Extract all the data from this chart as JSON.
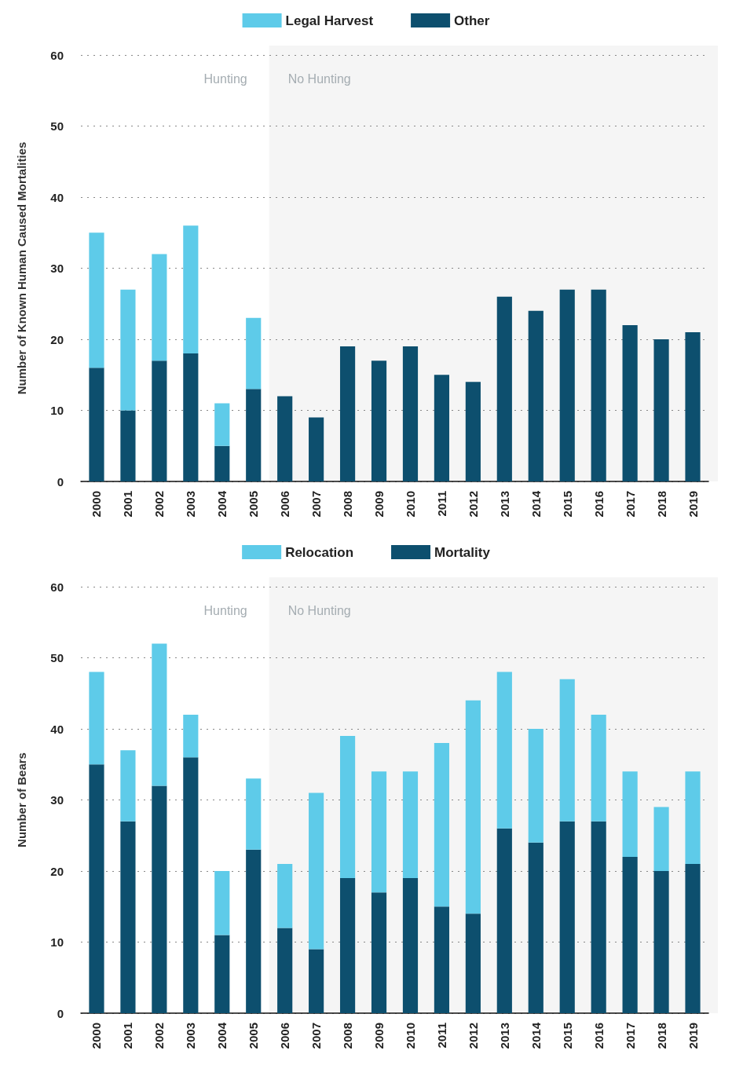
{
  "chart_data": [
    {
      "type": "bar",
      "stacked": true,
      "ylabel": "Number of Known Human Caused Mortalities",
      "categories": [
        "2000",
        "2001",
        "2002",
        "2003",
        "2004",
        "2005",
        "2006",
        "2007",
        "2008",
        "2009",
        "2010",
        "2011",
        "2012",
        "2013",
        "2014",
        "2015",
        "2016",
        "2017",
        "2018",
        "2019"
      ],
      "series": [
        {
          "name": "Other",
          "color": "#0d4f6e",
          "values": [
            16,
            10,
            17,
            18,
            5,
            13,
            12,
            9,
            19,
            17,
            19,
            15,
            14,
            26,
            24,
            27,
            27,
            22,
            20,
            21
          ]
        },
        {
          "name": "Legal Harvest",
          "color": "#5ecbe9",
          "values": [
            19,
            17,
            15,
            18,
            6,
            10,
            null,
            null,
            null,
            null,
            null,
            null,
            null,
            null,
            null,
            null,
            null,
            null,
            null,
            null
          ]
        }
      ],
      "ylim": [
        0,
        60
      ],
      "yticks": [
        0,
        10,
        20,
        30,
        40,
        50,
        60
      ],
      "grid": "y",
      "legend": "top",
      "bands": [
        {
          "axis": "x",
          "from": "2006",
          "to": "2019",
          "label": "No Hunting",
          "color": "#f5f5f5"
        }
      ],
      "annotations": [
        "Hunting"
      ]
    },
    {
      "type": "bar",
      "stacked": true,
      "ylabel": "Number of Bears",
      "categories": [
        "2000",
        "2001",
        "2002",
        "2003",
        "2004",
        "2005",
        "2006",
        "2007",
        "2008",
        "2009",
        "2010",
        "2011",
        "2012",
        "2013",
        "2014",
        "2015",
        "2016",
        "2017",
        "2018",
        "2019"
      ],
      "series": [
        {
          "name": "Mortality",
          "color": "#0d4f6e",
          "values": [
            35,
            27,
            32,
            36,
            11,
            23,
            12,
            9,
            19,
            17,
            19,
            15,
            14,
            26,
            24,
            27,
            27,
            22,
            20,
            21
          ]
        },
        {
          "name": "Relocation",
          "color": "#5ecbe9",
          "values": [
            13,
            10,
            20,
            6,
            9,
            10,
            9,
            22,
            20,
            17,
            15,
            23,
            30,
            22,
            16,
            20,
            15,
            12,
            9,
            13
          ]
        }
      ],
      "ylim": [
        0,
        60
      ],
      "yticks": [
        0,
        10,
        20,
        30,
        40,
        50,
        60
      ],
      "grid": "y",
      "legend": "top",
      "bands": [
        {
          "axis": "x",
          "from": "2006",
          "to": "2019",
          "label": "No Hunting",
          "color": "#f5f5f5"
        }
      ],
      "annotations": [
        "Hunting"
      ]
    }
  ]
}
